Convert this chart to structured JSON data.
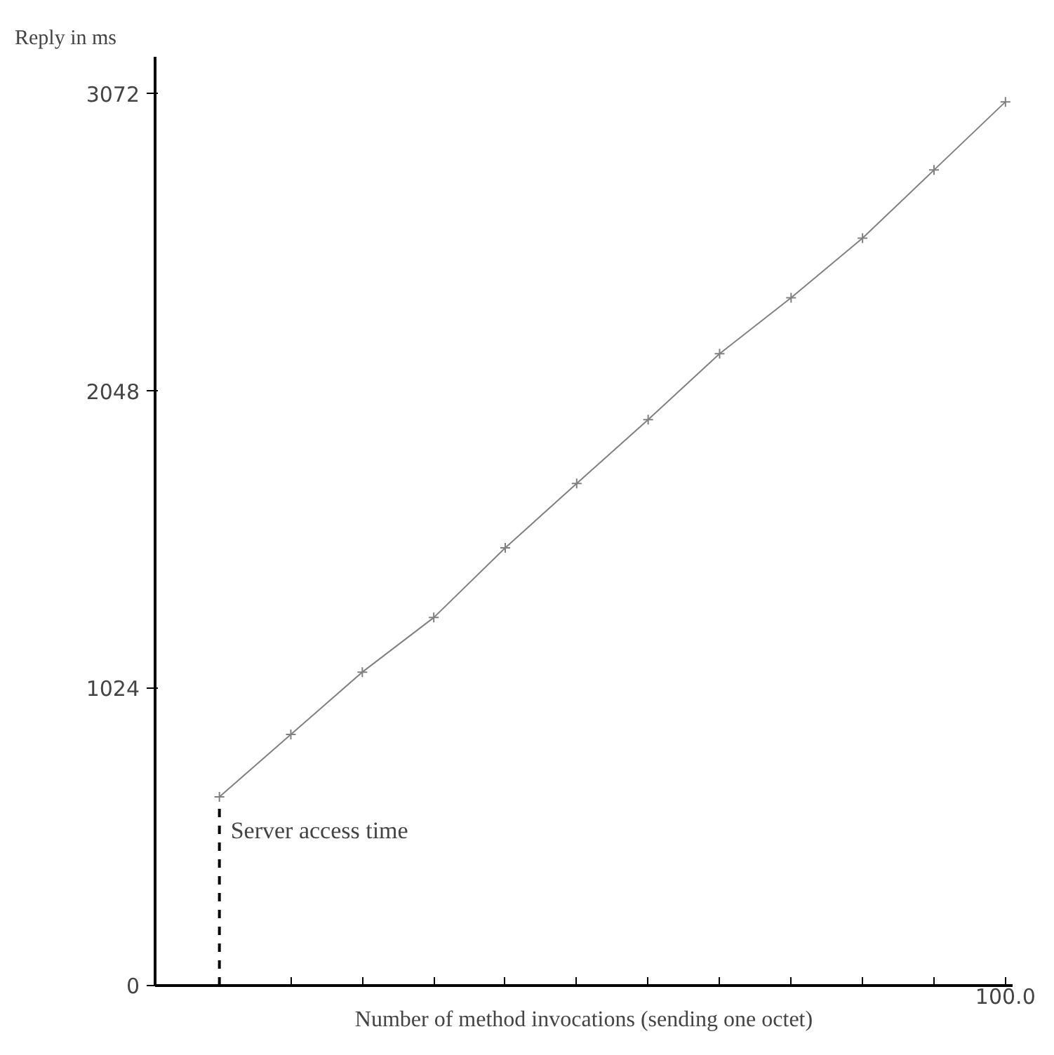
{
  "chart_data": {
    "type": "line",
    "xlabel": "Number of method invocations (sending one octet)",
    "ylabel": "Reply in ms",
    "categories": [
      null,
      null,
      null,
      null,
      null,
      null,
      null,
      null,
      null,
      null,
      null,
      "100.0"
    ],
    "series": [
      {
        "color": "#808080",
        "values": [
          650,
          865,
          1080,
          1268,
          1508,
          1730,
          1950,
          2177,
          2370,
          2575,
          2810,
          3045
        ]
      }
    ],
    "ylim": [
      0,
      3200
    ],
    "yticks": [
      0,
      1024,
      2048,
      3072
    ],
    "annotations": [
      "Server access time"
    ],
    "marker": "cross"
  }
}
